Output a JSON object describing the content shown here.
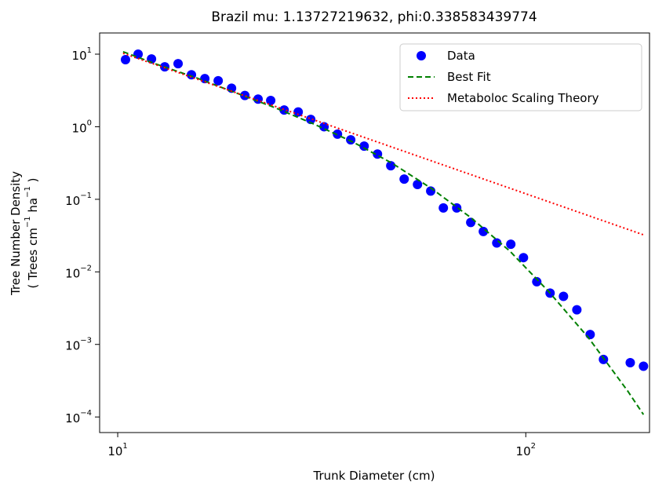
{
  "chart_data": {
    "type": "scatter",
    "title": "Brazil mu: 1.13727219632, phi:0.338583439774",
    "x_label": "Trunk Diameter (cm)",
    "y_label": [
      "Tree Number Density",
      "( Trees cm^−1 ha^−1 )"
    ],
    "xlog": true,
    "ylog": true,
    "xlim": [
      9.03,
      201
    ],
    "ylim": [
      6.1e-05,
      19.6
    ],
    "xticks": [
      {
        "value": 10,
        "label": "10^1"
      },
      {
        "value": 100,
        "label": "10^2"
      }
    ],
    "yticks": [
      {
        "value": 0.0001,
        "label": "10^−4"
      },
      {
        "value": 0.001,
        "label": "10^−3"
      },
      {
        "value": 0.01,
        "label": "10^−2"
      },
      {
        "value": 0.1,
        "label": "10^−1"
      },
      {
        "value": 1,
        "label": "10^0"
      },
      {
        "value": 10,
        "label": "10^1"
      }
    ],
    "legend": "upper right",
    "series": [
      {
        "name": "Data",
        "color": "#0000ff",
        "kind": "scatter",
        "x": [
          10.45,
          11.22,
          12.1,
          13.04,
          14.06,
          15.16,
          16.35,
          17.63,
          19.01,
          20.49,
          22.08,
          23.71,
          25.58,
          27.69,
          29.72,
          32.04,
          34.56,
          37.24,
          40.17,
          43.31,
          46.68,
          50.35,
          54.28,
          58.48,
          62.81,
          67.73,
          73.3,
          78.7,
          84.9,
          91.9,
          98.7,
          106.4,
          114.7,
          123.7,
          133.4,
          143.8,
          155.0,
          180.3,
          194.3
        ],
        "values": [
          8.4,
          10,
          8.6,
          6.7,
          7.4,
          5.2,
          4.6,
          4.3,
          3.4,
          2.7,
          2.4,
          2.3,
          1.7,
          1.6,
          1.26,
          1.0,
          0.79,
          0.66,
          0.54,
          0.42,
          0.29,
          0.19,
          0.16,
          0.13,
          0.076,
          0.076,
          0.048,
          0.036,
          0.025,
          0.024,
          0.0157,
          0.0073,
          0.0051,
          0.0046,
          0.003,
          0.00137,
          0.00062,
          0.00056,
          0.0005
        ]
      },
      {
        "name": "Best Fit",
        "color": "#008000",
        "kind": "dashed",
        "x": [
          10.31,
          12.48,
          15.57,
          19.42,
          24.24,
          30.25,
          37.74,
          47.09,
          58.76,
          73.3,
          91.5,
          114.1,
          142.4,
          177.7,
          194.3
        ],
        "values": [
          10.8,
          7.24,
          4.73,
          2.95,
          1.84,
          1.09,
          0.614,
          0.313,
          0.141,
          0.0561,
          0.0192,
          0.00526,
          0.00124,
          0.000228,
          0.000108
        ]
      },
      {
        "name": "Metaboloc Scaling Theory",
        "color": "#ff0000",
        "kind": "dotted",
        "x": [
          10.31,
          194.3
        ],
        "values": [
          10.27,
          0.0324
        ]
      }
    ]
  }
}
